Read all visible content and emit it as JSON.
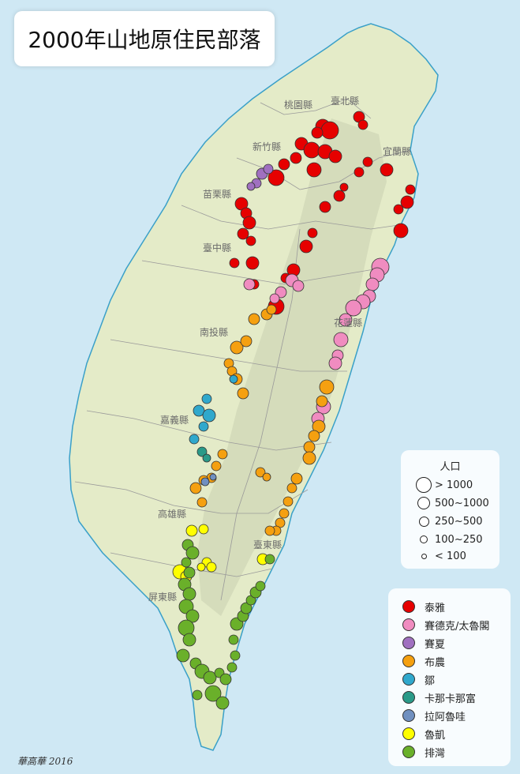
{
  "title": "2000年山地原住民部落",
  "counties": [
    {
      "id": "taipei",
      "label": "臺北縣"
    },
    {
      "id": "taoyuan",
      "label": "桃園縣"
    },
    {
      "id": "hsinchu",
      "label": "新竹縣"
    },
    {
      "id": "yilan",
      "label": "宜蘭縣"
    },
    {
      "id": "miaoli",
      "label": "苗栗縣"
    },
    {
      "id": "taichung",
      "label": "臺中縣"
    },
    {
      "id": "nantou",
      "label": "南投縣"
    },
    {
      "id": "hualien",
      "label": "花蓮縣"
    },
    {
      "id": "chiayi",
      "label": "嘉義縣"
    },
    {
      "id": "kaohsiung",
      "label": "高雄縣"
    },
    {
      "id": "taitung",
      "label": "臺東縣"
    },
    {
      "id": "pingtung",
      "label": "屏東縣"
    }
  ],
  "population_legend": {
    "title": "人口",
    "items": [
      {
        "label": "> 1000"
      },
      {
        "label": "500~1000"
      },
      {
        "label": "250~500"
      },
      {
        "label": "100~250"
      },
      {
        "label": "< 100"
      }
    ]
  },
  "ethnic_legend": {
    "items": [
      {
        "label": "泰雅",
        "color": "#e60000"
      },
      {
        "label": "賽德克/太魯閣",
        "color": "#f08cc0"
      },
      {
        "label": "賽夏",
        "color": "#a070c0"
      },
      {
        "label": "布農",
        "color": "#f5a010"
      },
      {
        "label": "鄒",
        "color": "#30a8cc"
      },
      {
        "label": "卡那卡那富",
        "color": "#2a9a88"
      },
      {
        "label": "拉阿魯哇",
        "color": "#7090c0"
      },
      {
        "label": "魯凱",
        "color": "#ffff00"
      },
      {
        "label": "排灣",
        "color": "#6ab02a"
      }
    ]
  },
  "colors": {
    "sea": "#cfe8f4",
    "land": "#e4ebc8",
    "coast": "#3aa0c8",
    "boundary": "#9a9a9a",
    "mountain": "#c8d0b0"
  },
  "signature": "華高華 2016"
}
